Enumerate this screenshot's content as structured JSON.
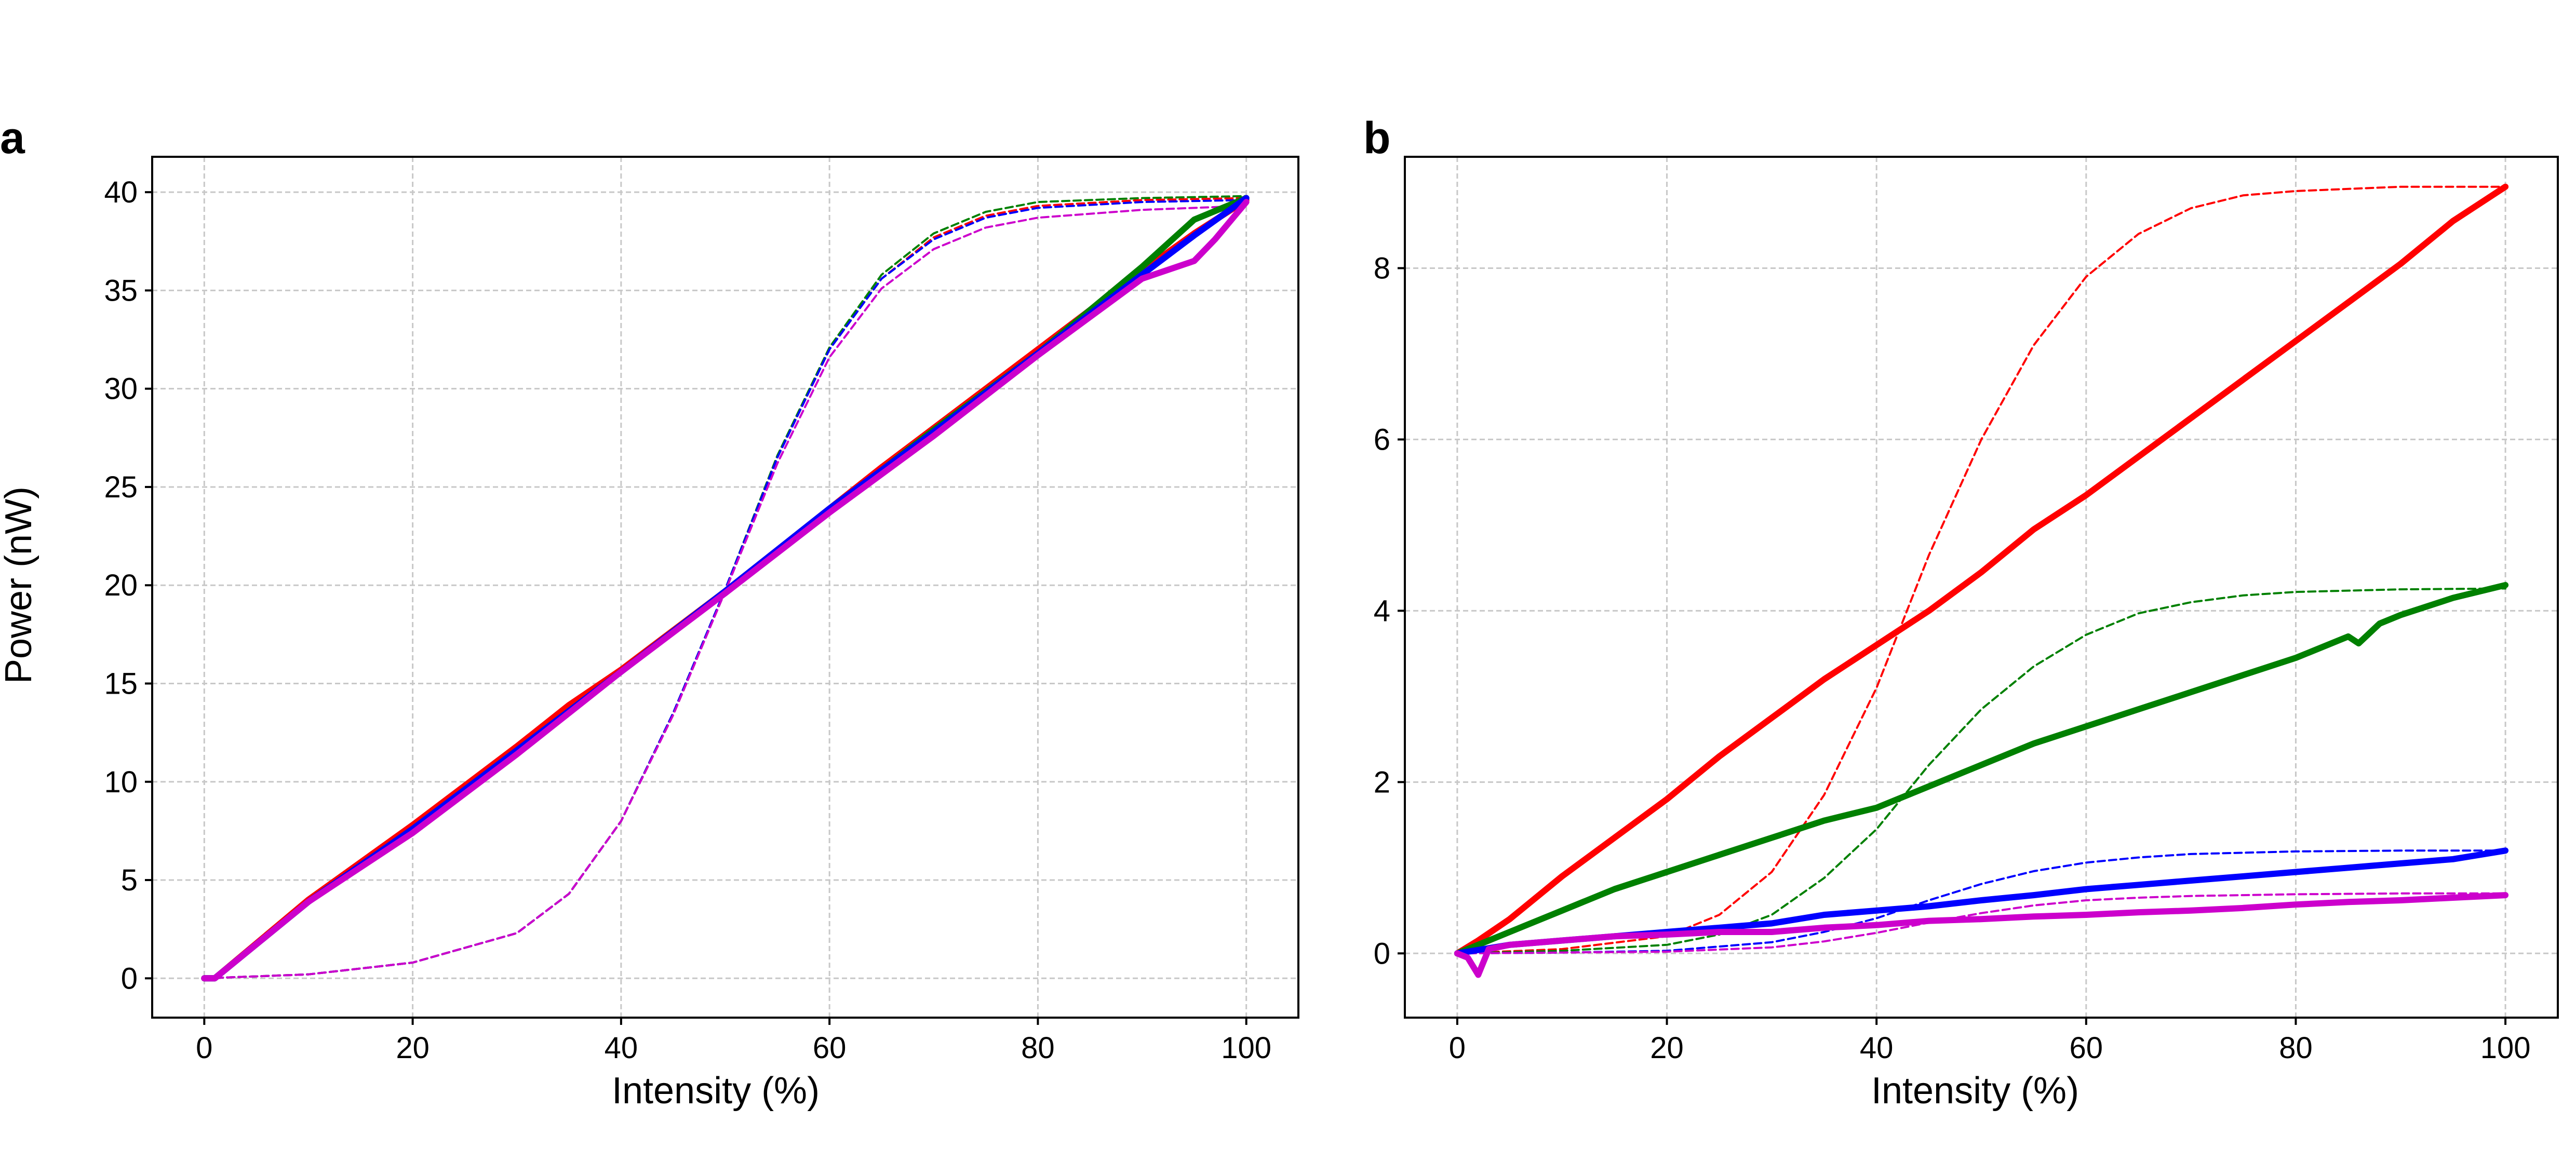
{
  "panels": [
    {
      "label": "a",
      "xlabel": "Intensity (%)",
      "ylabel": "Power (nW)"
    },
    {
      "label": "b",
      "xlabel": "Intensity (%)",
      "ylabel": ""
    }
  ],
  "chart_data": [
    {
      "type": "line",
      "title": "",
      "xlabel": "Intensity (%)",
      "ylabel": "Power (nW)",
      "xlim": [
        -5,
        105
      ],
      "ylim": [
        -2,
        41.8
      ],
      "xticks": [
        0,
        20,
        40,
        60,
        80,
        100
      ],
      "yticks": [
        0,
        5,
        10,
        15,
        20,
        25,
        30,
        35,
        40
      ],
      "grid": true,
      "series": [
        {
          "color": "#ff0000",
          "style": "solid",
          "x": [
            0,
            1,
            10,
            20,
            30,
            35,
            40,
            50,
            60,
            65,
            70,
            80,
            90,
            95,
            100
          ],
          "y": [
            0,
            0,
            4,
            7.8,
            11.8,
            13.9,
            15.7,
            19.7,
            23.9,
            26,
            28,
            32,
            36,
            37.9,
            39.6
          ]
        },
        {
          "color": "#008000",
          "style": "solid",
          "x": [
            0,
            1,
            10,
            20,
            30,
            40,
            50,
            60,
            70,
            80,
            90,
            95,
            100
          ],
          "y": [
            0,
            0,
            3.9,
            7.6,
            11.6,
            15.6,
            19.7,
            23.8,
            27.9,
            31.8,
            36.2,
            38.6,
            39.7
          ]
        },
        {
          "color": "#0000ff",
          "style": "solid",
          "x": [
            0,
            1,
            10,
            20,
            30,
            40,
            50,
            60,
            70,
            80,
            90,
            95,
            100
          ],
          "y": [
            0,
            0,
            3.9,
            7.6,
            11.6,
            15.6,
            19.7,
            23.9,
            27.8,
            31.8,
            35.8,
            37.8,
            39.7
          ]
        },
        {
          "color": "#cc00cc",
          "style": "solid",
          "x": [
            0,
            1,
            10,
            20,
            30,
            40,
            50,
            60,
            70,
            80,
            90,
            95,
            97,
            100
          ],
          "y": [
            0,
            0,
            3.9,
            7.4,
            11.4,
            15.6,
            19.6,
            23.7,
            27.6,
            31.7,
            35.6,
            36.5,
            37.6,
            39.5
          ]
        },
        {
          "color": "#ff0000",
          "style": "dashed",
          "x": [
            0,
            10,
            20,
            30,
            35,
            40,
            45,
            50,
            55,
            60,
            65,
            70,
            75,
            80,
            90,
            100
          ],
          "y": [
            0,
            0.2,
            0.8,
            2.3,
            4.3,
            8,
            13.5,
            19.8,
            26.5,
            32,
            35.6,
            37.7,
            38.8,
            39.3,
            39.6,
            39.7
          ]
        },
        {
          "color": "#008000",
          "style": "dashed",
          "x": [
            0,
            10,
            20,
            30,
            35,
            40,
            45,
            50,
            55,
            60,
            65,
            70,
            75,
            80,
            90,
            100
          ],
          "y": [
            0,
            0.2,
            0.8,
            2.3,
            4.3,
            8,
            13.5,
            19.8,
            26.6,
            32.1,
            35.8,
            37.9,
            39,
            39.5,
            39.7,
            39.8
          ]
        },
        {
          "color": "#0000ff",
          "style": "dashed",
          "x": [
            0,
            10,
            20,
            30,
            35,
            40,
            45,
            50,
            55,
            60,
            65,
            70,
            75,
            80,
            90,
            100
          ],
          "y": [
            0,
            0.2,
            0.8,
            2.3,
            4.3,
            8,
            13.5,
            19.8,
            26.5,
            32,
            35.6,
            37.6,
            38.7,
            39.2,
            39.5,
            39.6
          ]
        },
        {
          "color": "#cc00cc",
          "style": "dashed",
          "x": [
            0,
            10,
            20,
            30,
            35,
            40,
            45,
            50,
            55,
            60,
            65,
            70,
            75,
            80,
            90,
            100
          ],
          "y": [
            0,
            0.2,
            0.8,
            2.3,
            4.3,
            8,
            13.4,
            19.7,
            26.2,
            31.6,
            35.1,
            37.1,
            38.2,
            38.7,
            39.1,
            39.3
          ]
        }
      ]
    },
    {
      "type": "line",
      "title": "",
      "xlabel": "Intensity (%)",
      "ylabel": "",
      "xlim": [
        -5,
        105
      ],
      "ylim": [
        -0.75,
        9.3
      ],
      "xticks": [
        0,
        20,
        40,
        60,
        80,
        100
      ],
      "yticks": [
        0,
        2,
        4,
        6,
        8
      ],
      "grid": true,
      "series": [
        {
          "color": "#ff0000",
          "style": "solid",
          "x": [
            0,
            2,
            5,
            10,
            15,
            20,
            25,
            30,
            35,
            40,
            45,
            50,
            55,
            60,
            65,
            70,
            75,
            80,
            85,
            90,
            95,
            100
          ],
          "y": [
            0,
            0.15,
            0.4,
            0.9,
            1.35,
            1.8,
            2.3,
            2.75,
            3.2,
            3.6,
            4.0,
            4.45,
            4.95,
            5.35,
            5.8,
            6.25,
            6.7,
            7.15,
            7.6,
            8.05,
            8.55,
            8.95
          ]
        },
        {
          "color": "#008000",
          "style": "solid",
          "x": [
            0,
            5,
            10,
            15,
            20,
            25,
            30,
            35,
            40,
            45,
            50,
            55,
            60,
            65,
            70,
            75,
            80,
            85,
            86,
            88,
            90,
            95,
            100
          ],
          "y": [
            0,
            0.25,
            0.5,
            0.75,
            0.95,
            1.15,
            1.35,
            1.55,
            1.7,
            1.95,
            2.2,
            2.45,
            2.65,
            2.85,
            3.05,
            3.25,
            3.45,
            3.7,
            3.62,
            3.85,
            3.95,
            4.15,
            4.3
          ]
        },
        {
          "color": "#0000ff",
          "style": "solid",
          "x": [
            0,
            5,
            10,
            15,
            20,
            25,
            30,
            35,
            40,
            45,
            50,
            55,
            60,
            65,
            70,
            75,
            80,
            85,
            90,
            95,
            100
          ],
          "y": [
            0,
            0.1,
            0.15,
            0.2,
            0.25,
            0.3,
            0.35,
            0.45,
            0.5,
            0.55,
            0.62,
            0.68,
            0.75,
            0.8,
            0.85,
            0.9,
            0.95,
            1.0,
            1.05,
            1.1,
            1.2
          ]
        },
        {
          "color": "#cc00cc",
          "style": "solid",
          "x": [
            0,
            1,
            2,
            3,
            5,
            10,
            15,
            20,
            25,
            30,
            35,
            40,
            45,
            50,
            55,
            60,
            65,
            70,
            75,
            80,
            85,
            90,
            95,
            100
          ],
          "y": [
            0,
            -0.05,
            -0.25,
            0.05,
            0.1,
            0.15,
            0.2,
            0.22,
            0.25,
            0.25,
            0.3,
            0.33,
            0.38,
            0.4,
            0.43,
            0.45,
            0.48,
            0.5,
            0.53,
            0.57,
            0.6,
            0.62,
            0.65,
            0.68
          ]
        },
        {
          "color": "#ff0000",
          "style": "dashed",
          "x": [
            0,
            10,
            20,
            25,
            30,
            35,
            40,
            45,
            50,
            55,
            60,
            65,
            70,
            75,
            80,
            90,
            100
          ],
          "y": [
            0,
            0.05,
            0.2,
            0.45,
            0.95,
            1.85,
            3.1,
            4.65,
            6.0,
            7.1,
            7.9,
            8.4,
            8.7,
            8.85,
            8.9,
            8.95,
            8.95
          ]
        },
        {
          "color": "#008000",
          "style": "dashed",
          "x": [
            0,
            10,
            20,
            25,
            30,
            35,
            40,
            45,
            50,
            55,
            60,
            65,
            70,
            75,
            80,
            90,
            100
          ],
          "y": [
            0,
            0.03,
            0.1,
            0.22,
            0.45,
            0.88,
            1.45,
            2.2,
            2.85,
            3.35,
            3.72,
            3.97,
            4.1,
            4.18,
            4.22,
            4.25,
            4.26
          ]
        },
        {
          "color": "#0000ff",
          "style": "dashed",
          "x": [
            0,
            10,
            20,
            30,
            35,
            40,
            45,
            50,
            55,
            60,
            65,
            70,
            80,
            90,
            100
          ],
          "y": [
            0,
            0.01,
            0.03,
            0.13,
            0.25,
            0.41,
            0.62,
            0.81,
            0.96,
            1.06,
            1.12,
            1.16,
            1.19,
            1.2,
            1.2
          ]
        },
        {
          "color": "#cc00cc",
          "style": "dashed",
          "x": [
            0,
            10,
            20,
            30,
            35,
            40,
            45,
            50,
            55,
            60,
            65,
            70,
            80,
            90,
            100
          ],
          "y": [
            0,
            0.01,
            0.02,
            0.07,
            0.14,
            0.24,
            0.36,
            0.47,
            0.56,
            0.62,
            0.65,
            0.67,
            0.69,
            0.7,
            0.7
          ]
        }
      ]
    }
  ]
}
